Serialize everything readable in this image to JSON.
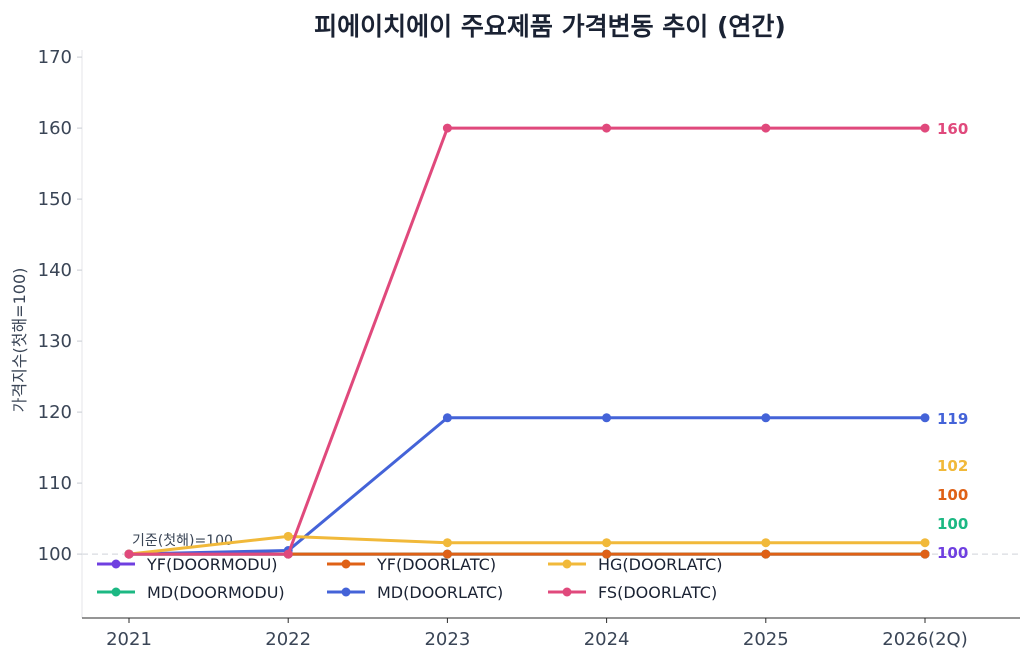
{
  "chart_data": {
    "type": "line",
    "title": "피에이치에이 주요제품 가격변동 추이 (연간)",
    "ylabel": "가격지수(첫해=100)",
    "xlabel": "",
    "categories": [
      "2021",
      "2022",
      "2023",
      "2024",
      "2025",
      "2026(2Q)"
    ],
    "ylim": [
      91,
      171
    ],
    "yticks": [
      100,
      110,
      120,
      130,
      140,
      150,
      160,
      170
    ],
    "baseline": 100,
    "baseline_annotation": "기준(첫해)=100",
    "legend_position": "lower-left",
    "legend_columns": 3,
    "series": [
      {
        "name": "YF(DOORMODU)",
        "color": "#6f3fe0",
        "values": [
          100,
          100,
          100,
          100,
          100,
          100
        ],
        "end_label": "100"
      },
      {
        "name": "MD(DOORMODU)",
        "color": "#1cb883",
        "values": [
          100,
          100,
          100,
          100,
          100,
          100
        ],
        "end_label": "100"
      },
      {
        "name": "YF(DOORLATC)",
        "color": "#df6116",
        "values": [
          100,
          100,
          100,
          100,
          100,
          100
        ],
        "end_label": "100"
      },
      {
        "name": "MD(DOORLATC)",
        "color": "#4463d8",
        "values": [
          100,
          100.5,
          119.2,
          119.2,
          119.2,
          119.2
        ],
        "end_label": "119"
      },
      {
        "name": "HG(DOORLATC)",
        "color": "#f1b93a",
        "values": [
          100,
          102.5,
          101.6,
          101.6,
          101.6,
          101.6
        ],
        "end_label": "102"
      },
      {
        "name": "FS(DOORLATC)",
        "color": "#e0497c",
        "values": [
          100,
          100,
          160,
          160,
          160,
          160
        ],
        "end_label": "160"
      }
    ],
    "end_label_order": [
      "FS(DOORLATC)",
      "MD(DOORLATC)",
      "HG(DOORLATC)",
      "YF(DOORLATC)",
      "MD(DOORMODU)",
      "YF(DOORMODU)"
    ]
  }
}
